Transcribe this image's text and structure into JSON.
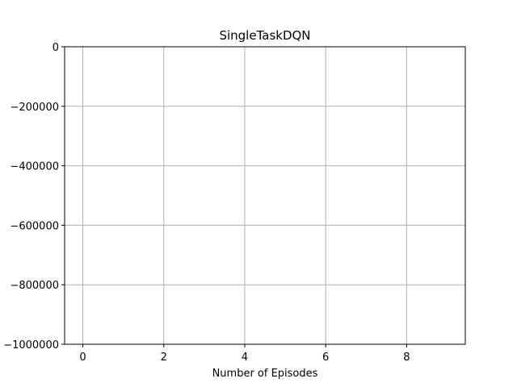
{
  "chart_data": {
    "type": "line",
    "title": "SingleTaskDQN",
    "xlabel": "Number of Episodes",
    "ylabel": "",
    "xlim": [
      -0.45,
      9.45
    ],
    "ylim": [
      -1000000,
      0
    ],
    "x_ticks": [
      0,
      2,
      4,
      6,
      8
    ],
    "x_tick_labels": [
      "0",
      "2",
      "4",
      "6",
      "8"
    ],
    "y_ticks": [
      0,
      -200000,
      -400000,
      -600000,
      -800000,
      -1000000
    ],
    "y_tick_labels": [
      "0",
      "−200000",
      "−400000",
      "−600000",
      "−800000",
      "−1000000"
    ],
    "grid": true,
    "series": [],
    "colors": {
      "grid": "#b0b0b0",
      "axes": "#000000",
      "background": "#ffffff"
    }
  }
}
